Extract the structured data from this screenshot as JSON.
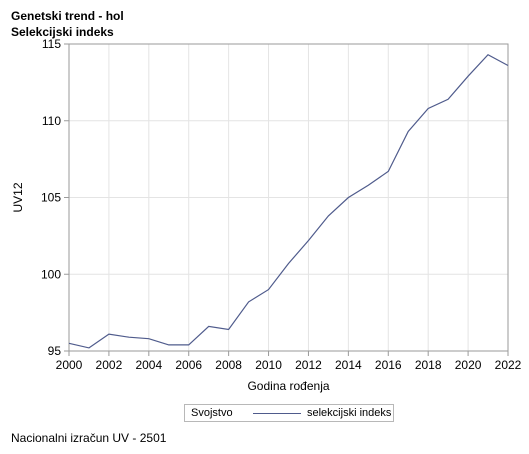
{
  "header": {
    "title": "Genetski trend - hol",
    "subtitle": "Selekcijski indeks"
  },
  "footer": {
    "note": "Nacionalni izračun UV - 2501"
  },
  "legend": {
    "title": "Svojstvo",
    "entries": [
      "selekcijski indeks"
    ]
  },
  "colors": {
    "series": "#4f5b8c",
    "grid": "#e4e4e4",
    "axis": "#9a9a9a"
  },
  "chart_data": {
    "type": "line",
    "title": "Genetski trend - hol",
    "subtitle": "Selekcijski indeks",
    "xlabel": "Godina rođenja",
    "ylabel": "UV12",
    "xlim": [
      2000,
      2022
    ],
    "ylim": [
      95,
      115
    ],
    "xticks": [
      2000,
      2002,
      2004,
      2006,
      2008,
      2010,
      2012,
      2014,
      2016,
      2018,
      2020,
      2022
    ],
    "yticks": [
      95,
      100,
      105,
      110,
      115
    ],
    "grid": true,
    "legend_position": "bottom",
    "series": [
      {
        "name": "selekcijski indeks",
        "x": [
          2000,
          2001,
          2002,
          2003,
          2004,
          2005,
          2006,
          2007,
          2008,
          2009,
          2010,
          2011,
          2012,
          2013,
          2014,
          2015,
          2016,
          2017,
          2018,
          2019,
          2020,
          2021,
          2022
        ],
        "y": [
          95.5,
          95.2,
          96.1,
          95.9,
          95.8,
          95.4,
          95.4,
          96.6,
          96.4,
          98.2,
          99.0,
          100.7,
          102.2,
          103.8,
          105.0,
          105.8,
          106.7,
          109.3,
          110.8,
          111.4,
          112.9,
          114.3,
          113.6
        ]
      }
    ]
  }
}
